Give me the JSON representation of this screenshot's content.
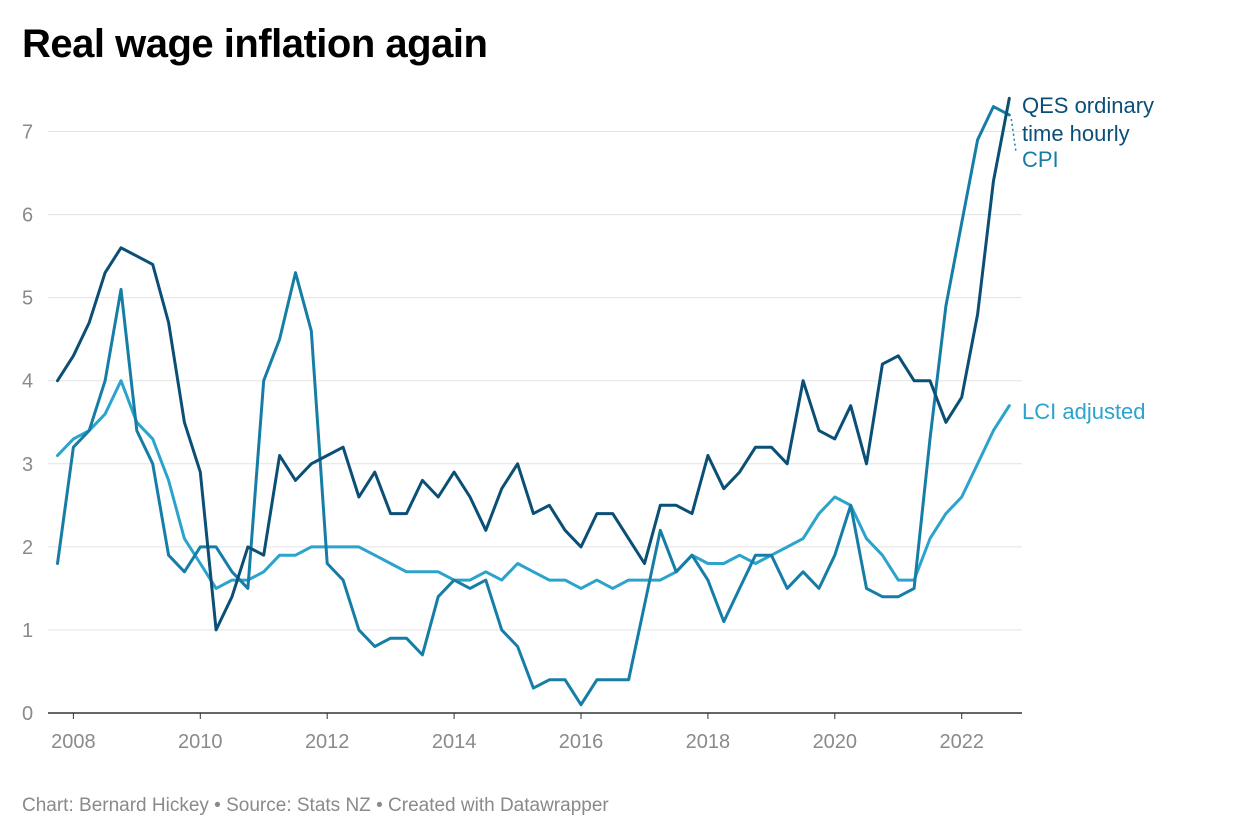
{
  "title": "Real wage inflation again",
  "footer": {
    "chart_by": "Chart: Bernard Hickey",
    "sep1": " • ",
    "source": "Source: Stats NZ",
    "sep2": " • ",
    "created": "Created with Datawrapper"
  },
  "chart_data": {
    "type": "line",
    "title": "Real wage inflation again",
    "xlabel": "",
    "ylabel": "",
    "xlim": [
      2007.6,
      2022.95
    ],
    "ylim": [
      0,
      7.5
    ],
    "y_ticks": [
      0,
      1,
      2,
      3,
      4,
      5,
      6,
      7
    ],
    "x_ticks": [
      2008,
      2010,
      2012,
      2014,
      2016,
      2018,
      2020,
      2022
    ],
    "grid": "horizontal",
    "legend": "direct labels at line ends (right)",
    "start": 2007.75,
    "step": 0.25,
    "series": [
      {
        "name": "QES ordinary time hourly",
        "label_lines": [
          "QES ordinary",
          "time hourly"
        ],
        "color": "#0b4f77",
        "values": [
          4.0,
          4.3,
          4.7,
          5.3,
          5.6,
          5.5,
          5.4,
          4.7,
          3.5,
          2.9,
          1.0,
          1.4,
          2.0,
          1.9,
          3.1,
          2.8,
          3.0,
          3.1,
          3.2,
          2.6,
          2.9,
          2.4,
          2.4,
          2.8,
          2.6,
          2.9,
          2.6,
          2.2,
          2.7,
          3.0,
          2.4,
          2.5,
          2.2,
          2.0,
          2.4,
          2.4,
          2.1,
          1.8,
          2.5,
          2.5,
          2.4,
          3.1,
          2.7,
          2.9,
          3.2,
          3.2,
          3.0,
          4.0,
          3.4,
          3.3,
          3.7,
          3.0,
          4.2,
          4.3,
          4.0,
          4.0,
          3.5,
          3.8,
          4.8,
          6.4,
          7.4
        ]
      },
      {
        "name": "CPI",
        "label_lines": [
          "CPI"
        ],
        "color": "#167ea6",
        "values": [
          1.8,
          3.2,
          3.4,
          4.0,
          5.1,
          3.4,
          3.0,
          1.9,
          1.7,
          2.0,
          2.0,
          1.7,
          1.5,
          4.0,
          4.5,
          5.3,
          4.6,
          1.8,
          1.6,
          1.0,
          0.8,
          0.9,
          0.9,
          0.7,
          1.4,
          1.6,
          1.5,
          1.6,
          1.0,
          0.8,
          0.3,
          0.4,
          0.4,
          0.1,
          0.4,
          0.4,
          0.4,
          1.3,
          2.2,
          1.7,
          1.9,
          1.6,
          1.1,
          1.5,
          1.9,
          1.9,
          1.5,
          1.7,
          1.5,
          1.9,
          2.5,
          1.5,
          1.4,
          1.4,
          1.5,
          3.3,
          4.9,
          5.9,
          6.9,
          7.3,
          7.2
        ]
      },
      {
        "name": "LCI adjusted",
        "label_lines": [
          "LCI adjusted"
        ],
        "color": "#2ba3cc",
        "values": [
          3.1,
          3.3,
          3.4,
          3.6,
          4.0,
          3.5,
          3.3,
          2.8,
          2.1,
          1.8,
          1.5,
          1.6,
          1.6,
          1.7,
          1.9,
          1.9,
          2.0,
          2.0,
          2.0,
          2.0,
          1.9,
          1.8,
          1.7,
          1.7,
          1.7,
          1.6,
          1.6,
          1.7,
          1.6,
          1.8,
          1.7,
          1.6,
          1.6,
          1.5,
          1.6,
          1.5,
          1.6,
          1.6,
          1.6,
          1.7,
          1.9,
          1.8,
          1.8,
          1.9,
          1.8,
          1.9,
          2.0,
          2.1,
          2.4,
          2.6,
          2.5,
          2.1,
          1.9,
          1.6,
          1.6,
          2.1,
          2.4,
          2.6,
          3.0,
          3.4,
          3.7
        ]
      }
    ]
  }
}
